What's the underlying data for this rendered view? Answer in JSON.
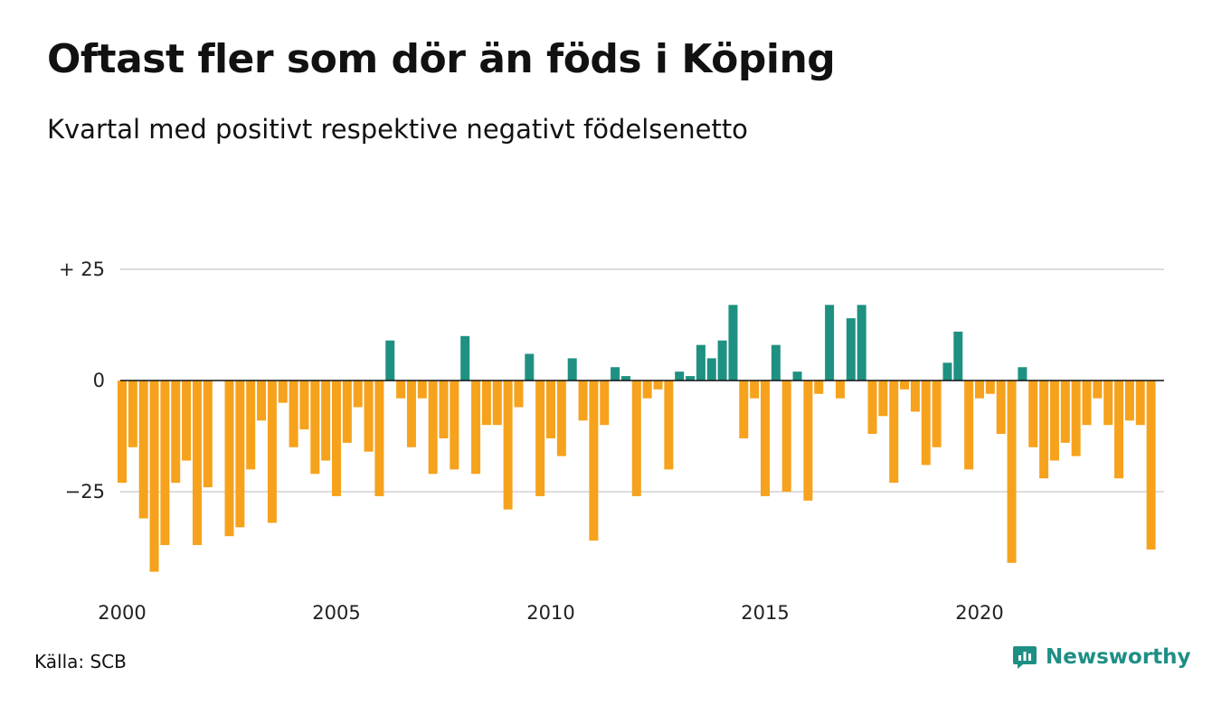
{
  "title": "Oftast fler som dör än föds i Köping",
  "subtitle": "Kvartal med positivt respektive negativt födelsenetto",
  "source": "Källa: SCB",
  "brand": "Newsworthy",
  "icons": {
    "logo": "newsworthy-logo-icon"
  },
  "colors": {
    "positive": "#1e9182",
    "negative": "#f6a21c",
    "grid": "#dddddd",
    "zero_line": "#111111",
    "brand": "#1e8f85"
  },
  "chart_data": {
    "type": "bar",
    "title": "Oftast fler som dör än föds i Köping",
    "subtitle": "Kvartal med positivt respektive negativt födelsenetto",
    "xlabel": "",
    "ylabel": "",
    "ylim": [
      -45,
      28
    ],
    "grid": true,
    "x_ticks": [
      {
        "label": "2000",
        "value": 2000
      },
      {
        "label": "2005",
        "value": 2005
      },
      {
        "label": "2010",
        "value": 2010
      },
      {
        "label": "2015",
        "value": 2015
      },
      {
        "label": "2020",
        "value": 2020
      }
    ],
    "y_ticks": [
      {
        "label": "+ 25",
        "value": 25
      },
      {
        "label": "0",
        "value": 0
      },
      {
        "label": "−25",
        "value": -25
      }
    ],
    "series": [
      {
        "x_start": 2000,
        "step": 0.25,
        "values": [
          -23,
          -15,
          -31,
          -43,
          -37,
          -23,
          -18,
          -37,
          -24,
          0,
          -35,
          -33,
          -20,
          -9,
          -32,
          -5,
          -15,
          -11,
          -21,
          -18,
          -26,
          -14,
          -6,
          -16,
          -26,
          9,
          -4,
          -15,
          -4,
          -21,
          -13,
          -20,
          10,
          -21,
          -10,
          -10,
          -29,
          -6,
          6,
          -26,
          -13,
          -17,
          5,
          -9,
          -36,
          -10,
          3,
          1,
          -26,
          -4,
          -2,
          -20,
          2,
          1,
          8,
          5,
          9,
          17,
          -13,
          -4,
          -26,
          8,
          -25,
          2,
          -27,
          -3,
          17,
          -4,
          14,
          17,
          -12,
          -8,
          -23,
          -2,
          -7,
          -19,
          -15,
          4,
          11,
          -20,
          -4,
          -3,
          -12,
          -41,
          3,
          -15,
          -22,
          -18,
          -14,
          -17,
          -10,
          -4,
          -10,
          -22,
          -9,
          -10,
          -38
        ]
      }
    ]
  }
}
